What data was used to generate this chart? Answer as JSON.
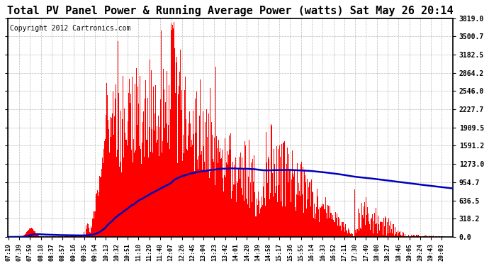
{
  "title": "Total PV Panel Power & Running Average Power (watts) Sat May 26 20:14",
  "copyright": "Copyright 2012 Cartronics.com",
  "yticks": [
    0.0,
    318.2,
    636.5,
    954.7,
    1273.0,
    1591.2,
    1909.5,
    2227.7,
    2546.0,
    2864.2,
    3182.5,
    3500.7,
    3819.0
  ],
  "ymax": 3819.0,
  "ymin": 0.0,
  "bar_color": "#FF0000",
  "avg_color": "#0000BB",
  "bg_color": "#FFFFFF",
  "grid_color": "#AAAAAA",
  "title_fontsize": 11,
  "copyright_fontsize": 7,
  "xtick_labels": [
    "07:19",
    "07:39",
    "07:59",
    "08:18",
    "08:37",
    "08:57",
    "09:16",
    "09:35",
    "09:54",
    "10:13",
    "10:32",
    "10:51",
    "11:10",
    "11:29",
    "11:48",
    "12:07",
    "12:26",
    "12:45",
    "13:04",
    "13:23",
    "13:42",
    "14:01",
    "14:20",
    "14:39",
    "14:58",
    "15:17",
    "15:36",
    "15:55",
    "16:14",
    "16:33",
    "16:52",
    "17:11",
    "17:30",
    "17:49",
    "18:08",
    "18:27",
    "18:46",
    "19:05",
    "19:24",
    "19:43",
    "20:03"
  ],
  "n_points": 820,
  "tick_every": 20
}
